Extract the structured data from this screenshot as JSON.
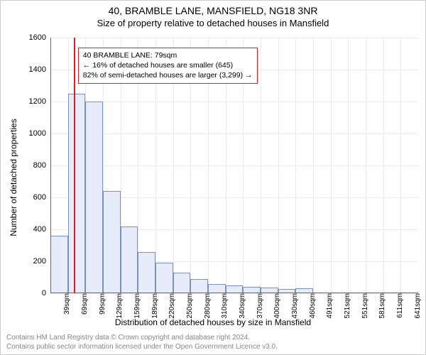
{
  "title": "40, BRAMBLE LANE, MANSFIELD, NG18 3NR",
  "subtitle": "Size of property relative to detached houses in Mansfield",
  "chart": {
    "type": "histogram",
    "ylabel": "Number of detached properties",
    "xlabel": "Distribution of detached houses by size in Mansfield",
    "ylim_max": 1600,
    "ytick_step": 200,
    "categories": [
      "39sqm",
      "69sqm",
      "99sqm",
      "129sqm",
      "159sqm",
      "189sqm",
      "220sqm",
      "250sqm",
      "280sqm",
      "310sqm",
      "340sqm",
      "370sqm",
      "400sqm",
      "430sqm",
      "460sqm",
      "491sqm",
      "521sqm",
      "551sqm",
      "581sqm",
      "611sqm",
      "641sqm"
    ],
    "values": [
      360,
      1250,
      1200,
      640,
      420,
      260,
      190,
      130,
      90,
      60,
      50,
      40,
      35,
      25,
      30,
      0,
      0,
      0,
      0,
      0,
      0
    ],
    "bar_fill": "#e6ecf9",
    "bar_border": "#7a91c3",
    "background": "#ffffff",
    "grid_color": "#eaeaea",
    "axis_color": "#666666",
    "marker_color": "#d02424",
    "marker_category_index": 1.33
  },
  "callout": {
    "line1": "40 BRAMBLE LANE: 79sqm",
    "line2": "← 16% of detached houses are smaller (645)",
    "line3": "82% of semi-detached houses are larger (3,299) →"
  },
  "footer": {
    "line1": "Contains HM Land Registry data © Crown copyright and database right 2024.",
    "line2": "Contains public sector information licensed under the Open Government Licence v3.0."
  }
}
